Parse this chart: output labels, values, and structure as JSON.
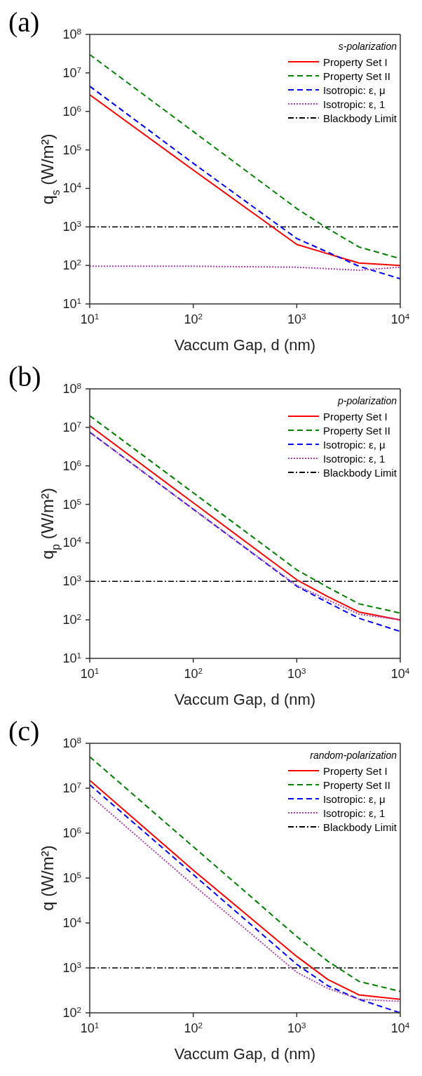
{
  "chart_data": [
    {
      "type": "line",
      "title": "(a)",
      "annotations": [
        "s-polarization"
      ],
      "xlabel": "Vaccum Gap, d (nm)",
      "ylabel": "q$_{s}$ (W/m²)",
      "log": "xy",
      "legend": "top right",
      "marker": "none",
      "x": [
        10,
        100,
        1000,
        2000,
        4000,
        10000
      ],
      "xlim": [
        10,
        10000
      ],
      "xticks": [
        {
          "value": 10,
          "label": "10$^{1}$"
        },
        {
          "value": 100,
          "label": "10$^{2}$"
        },
        {
          "value": 1000,
          "label": "10$^{3}$"
        },
        {
          "value": 10000,
          "label": "10$^{4}$"
        }
      ],
      "ylim": [
        10,
        100000000
      ],
      "yticks": [
        {
          "value": 10,
          "label": "10$^{1}$"
        },
        {
          "value": 100,
          "label": "10$^{2}$"
        },
        {
          "value": 1000,
          "label": "10$^{3}$"
        },
        {
          "value": 10000,
          "label": "10$^{4}$"
        },
        {
          "value": 100000,
          "label": "10$^{5}$"
        },
        {
          "value": 1000000,
          "label": "10$^{6}$"
        },
        {
          "value": 10000000,
          "label": "10$^{7}$"
        },
        {
          "value": 100000000,
          "label": "10$^{8}$"
        }
      ],
      "series": [
        {
          "name": "Property Set I",
          "color": "#ff0000",
          "line_style": "solid",
          "values": [
            2700000,
            30000,
            350,
            200,
            115,
            100
          ]
        },
        {
          "name": "Property Set II",
          "color": "#008000",
          "line_style": "dashed",
          "values": [
            30000000,
            300000,
            3000,
            900,
            300,
            150
          ]
        },
        {
          "name": "Isotropic: ε, μ",
          "color": "#0000ff",
          "line_style": "dashed",
          "values": [
            4500000,
            45000,
            500,
            220,
            95,
            45
          ]
        },
        {
          "name": "Isotropic: ε, 1",
          "color": "#b040b0",
          "line_style": "dotted",
          "values": [
            95,
            95,
            90,
            82,
            75,
            90
          ]
        }
      ],
      "ref_lines": [
        {
          "axis": "y",
          "value": 1000,
          "label": "Blackbody Limit",
          "color": "#000000"
        }
      ]
    },
    {
      "type": "line",
      "title": "(b)",
      "annotations": [
        "p-polarization"
      ],
      "xlabel": "Vaccum Gap, d (nm)",
      "ylabel": "q$_{p}$ (W/m²)",
      "log": "xy",
      "legend": "top right",
      "marker": "none",
      "x": [
        10,
        100,
        1000,
        2000,
        4000,
        10000
      ],
      "xlim": [
        10,
        10000
      ],
      "xticks": [
        {
          "value": 10,
          "label": "10$^{1}$"
        },
        {
          "value": 100,
          "label": "10$^{2}$"
        },
        {
          "value": 1000,
          "label": "10$^{3}$"
        },
        {
          "value": 10000,
          "label": "10$^{4}$"
        }
      ],
      "ylim": [
        10,
        100000000
      ],
      "yticks": [
        {
          "value": 10,
          "label": "10$^{1}$"
        },
        {
          "value": 100,
          "label": "10$^{2}$"
        },
        {
          "value": 1000,
          "label": "10$^{3}$"
        },
        {
          "value": 10000,
          "label": "10$^{4}$"
        },
        {
          "value": 100000,
          "label": "10$^{5}$"
        },
        {
          "value": 1000000,
          "label": "10$^{6}$"
        },
        {
          "value": 10000000,
          "label": "10$^{7}$"
        },
        {
          "value": 100000000,
          "label": "10$^{8}$"
        }
      ],
      "series": [
        {
          "name": "Property Set I",
          "color": "#ff0000",
          "line_style": "solid",
          "values": [
            11000000,
            110000,
            1100,
            400,
            160,
            100
          ]
        },
        {
          "name": "Property Set II",
          "color": "#008000",
          "line_style": "dashed",
          "values": [
            20000000,
            200000,
            2000,
            700,
            260,
            150
          ]
        },
        {
          "name": "Isotropic: ε, μ",
          "color": "#0000ff",
          "line_style": "dashed",
          "values": [
            7500000,
            75000,
            750,
            280,
            110,
            50
          ]
        },
        {
          "name": "Isotropic: ε, 1",
          "color": "#b040b0",
          "line_style": "dotted",
          "values": [
            7500000,
            75000,
            780,
            330,
            140,
            100
          ]
        }
      ],
      "ref_lines": [
        {
          "axis": "y",
          "value": 1000,
          "label": "Blackbody Limit",
          "color": "#000000"
        }
      ]
    },
    {
      "type": "line",
      "title": "(c)",
      "annotations": [
        "random-polarization"
      ],
      "xlabel": "Vaccum Gap, d (nm)",
      "ylabel": "q (W/m²)",
      "log": "xy",
      "legend": "top right",
      "marker": "none",
      "x": [
        10,
        100,
        1000,
        2000,
        4000,
        10000
      ],
      "xlim": [
        10,
        10000
      ],
      "xticks": [
        {
          "value": 10,
          "label": "10$^{1}$"
        },
        {
          "value": 100,
          "label": "10$^{2}$"
        },
        {
          "value": 1000,
          "label": "10$^{3}$"
        },
        {
          "value": 10000,
          "label": "10$^{4}$"
        }
      ],
      "ylim": [
        100,
        100000000
      ],
      "yticks": [
        {
          "value": 100,
          "label": "10$^{2}$"
        },
        {
          "value": 1000,
          "label": "10$^{3}$"
        },
        {
          "value": 10000,
          "label": "10$^{4}$"
        },
        {
          "value": 100000,
          "label": "10$^{5}$"
        },
        {
          "value": 1000000,
          "label": "10$^{6}$"
        },
        {
          "value": 10000000,
          "label": "10$^{7}$"
        },
        {
          "value": 100000000,
          "label": "10$^{8}$"
        }
      ],
      "series": [
        {
          "name": "Property Set I",
          "color": "#ff0000",
          "line_style": "solid",
          "values": [
            15000000,
            150000,
            1800,
            550,
            250,
            200
          ]
        },
        {
          "name": "Property Set II",
          "color": "#008000",
          "line_style": "dashed",
          "values": [
            50000000,
            500000,
            5000,
            1400,
            500,
            300
          ]
        },
        {
          "name": "Isotropic: ε, μ",
          "color": "#0000ff",
          "line_style": "dashed",
          "values": [
            12000000,
            120000,
            1200,
            400,
            200,
            100
          ]
        },
        {
          "name": "Isotropic: ε, 1",
          "color": "#b040b0",
          "line_style": "dotted",
          "values": [
            7000000,
            70000,
            800,
            350,
            200,
            180
          ]
        }
      ],
      "ref_lines": [
        {
          "axis": "y",
          "value": 1000,
          "label": "Blackbody Limit",
          "color": "#000000"
        }
      ]
    }
  ]
}
